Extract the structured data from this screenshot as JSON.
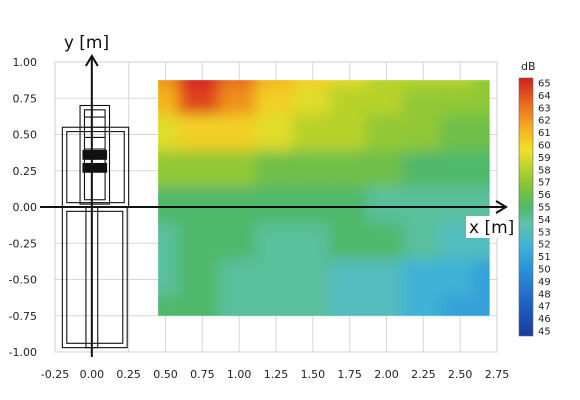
{
  "chart_data": {
    "type": "heatmap",
    "title": "",
    "xlabel": "x [m]",
    "ylabel": "y [m]",
    "xlim": [
      -0.25,
      2.75
    ],
    "ylim": [
      -1.0,
      1.0
    ],
    "xticks": [
      "-0.25",
      "0.00",
      "0.25",
      "0.50",
      "0.75",
      "1.00",
      "1.25",
      "1.50",
      "1.75",
      "2.00",
      "2.25",
      "2.50",
      "2.75"
    ],
    "yticks": [
      "1.00",
      "0.75",
      "0.50",
      "0.25",
      "0.00",
      "-0.25",
      "-0.50",
      "-0.75",
      "-1.00"
    ],
    "grid": true,
    "measurement_region": {
      "x": [
        0.45,
        2.7
      ],
      "y": [
        -0.75,
        0.875
      ]
    },
    "x": [
      0.45,
      0.75,
      1.0,
      1.25,
      1.5,
      1.75,
      2.0,
      2.25,
      2.5,
      2.7
    ],
    "y": [
      0.875,
      0.75,
      0.5,
      0.25,
      0.0,
      -0.25,
      -0.5,
      -0.75
    ],
    "values": [
      [
        62,
        65,
        63,
        61,
        60,
        59,
        58,
        58,
        58,
        57
      ],
      [
        61,
        64,
        62,
        60,
        59,
        58,
        58,
        57,
        57,
        57
      ],
      [
        59,
        60,
        60,
        59,
        58,
        58,
        57,
        57,
        56,
        56
      ],
      [
        57,
        57,
        57,
        56,
        56,
        56,
        56,
        55,
        55,
        55
      ],
      [
        55,
        55,
        55,
        55,
        55,
        55,
        54,
        54,
        54,
        54
      ],
      [
        54,
        55,
        55,
        54,
        54,
        55,
        55,
        54,
        53,
        53
      ],
      [
        54,
        55,
        54,
        54,
        54,
        53,
        53,
        52,
        52,
        51
      ],
      [
        55,
        55,
        54,
        54,
        54,
        53,
        53,
        52,
        51,
        51
      ]
    ],
    "colorbar": {
      "unit": "dB",
      "min": 45,
      "max": 65,
      "ticks": [
        "65",
        "64",
        "63",
        "62",
        "61",
        "60",
        "59",
        "58",
        "57",
        "56",
        "55",
        "54",
        "53",
        "52",
        "51",
        "50",
        "49",
        "48",
        "47",
        "46",
        "45"
      ],
      "colors": [
        "#1a3a9c",
        "#1f5fc4",
        "#2a8fd8",
        "#3fb2d6",
        "#5ec2b0",
        "#4fb86a",
        "#7cc23c",
        "#b7d22a",
        "#f0e02a",
        "#f4b31e",
        "#ea6a1c",
        "#d21f1f"
      ]
    },
    "annotation": "equipment outline"
  }
}
